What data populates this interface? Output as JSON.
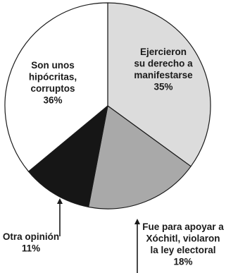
{
  "chart_data": {
    "type": "pie",
    "slices": [
      {
        "label": "Ejercieron su derecho a manifestarse",
        "lines": [
          "Ejercieron",
          "su derecho a",
          "manifestarse"
        ],
        "value": 35,
        "value_label": "35%",
        "color": "#dcdcdc"
      },
      {
        "label": "Fue para apoyar a Xóchitl, violaron la ley electoral",
        "lines": [
          "Fue para apoyar a",
          "Xóchitl, violaron",
          "la ley electoral"
        ],
        "value": 18,
        "value_label": "18%",
        "color": "#a9a9a9"
      },
      {
        "label": "Otra opinión",
        "lines": [
          "Otra opinión"
        ],
        "value": 11,
        "value_label": "11%",
        "color": "#161616"
      },
      {
        "label": "Son unos hipócritas, corruptos",
        "lines": [
          "Son unos",
          "hipócritas,",
          "corruptos"
        ],
        "value": 36,
        "value_label": "36%",
        "color": "#ffffff"
      }
    ],
    "start_angle_deg": 0,
    "direction": "clockwise",
    "legend": "none"
  }
}
